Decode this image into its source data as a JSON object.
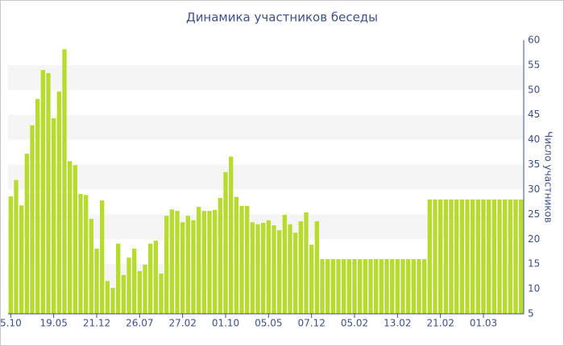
{
  "chart_data": {
    "type": "bar",
    "title": "Динамика участников беседы",
    "y_label": "Число участников",
    "color": "#b7db2f",
    "ylim": [
      5,
      60
    ],
    "yticks": [
      5,
      10,
      15,
      20,
      25,
      30,
      35,
      40,
      45,
      50,
      55,
      60
    ],
    "grid_bands": true,
    "categories": [
      "5.10",
      null,
      null,
      null,
      null,
      null,
      null,
      null,
      "19.05",
      null,
      null,
      null,
      null,
      null,
      null,
      null,
      "21.12",
      null,
      null,
      null,
      null,
      null,
      null,
      null,
      "26.07",
      null,
      null,
      null,
      null,
      null,
      null,
      null,
      "27.02",
      null,
      null,
      null,
      null,
      null,
      null,
      null,
      "01.10",
      null,
      null,
      null,
      null,
      null,
      null,
      null,
      "05.05",
      null,
      null,
      null,
      null,
      null,
      null,
      null,
      "07.12",
      null,
      null,
      null,
      null,
      null,
      null,
      null,
      "05.02",
      null,
      null,
      null,
      null,
      null,
      null,
      null,
      "13.02",
      null,
      null,
      null,
      null,
      null,
      null,
      null,
      "21.02",
      null,
      null,
      null,
      null,
      null,
      null,
      null,
      "01.03",
      null,
      null,
      null,
      null,
      null,
      null,
      null
    ],
    "values": [
      28.6,
      31.9,
      26.8,
      37.2,
      42.9,
      48.2,
      54,
      53.4,
      44.3,
      49.7,
      58.2,
      35.7,
      34.9,
      29.1,
      28.9,
      24.1,
      18.1,
      27.8,
      11.6,
      10.2,
      19.1,
      12.8,
      16.3,
      18.1,
      13.6,
      14.9,
      19.1,
      19.7,
      13.1,
      24.7,
      26,
      25.7,
      23.4,
      24.7,
      23.8,
      26.5,
      25.7,
      25.7,
      25.9,
      28.3,
      33.5,
      36.6,
      28.5,
      26.7,
      26.7,
      23.4,
      23,
      23.3,
      23.8,
      22.8,
      21.8,
      24.9,
      23,
      21.3,
      23.6,
      25.4,
      18.9,
      23.6,
      16,
      16,
      16,
      16,
      16,
      16,
      16,
      16,
      16,
      16,
      16,
      16,
      16,
      16,
      16,
      16,
      16,
      16,
      16,
      16,
      28,
      28,
      28,
      28,
      28,
      28,
      28,
      28,
      28,
      28,
      28,
      28,
      28,
      28,
      28,
      28,
      28,
      28
    ]
  }
}
